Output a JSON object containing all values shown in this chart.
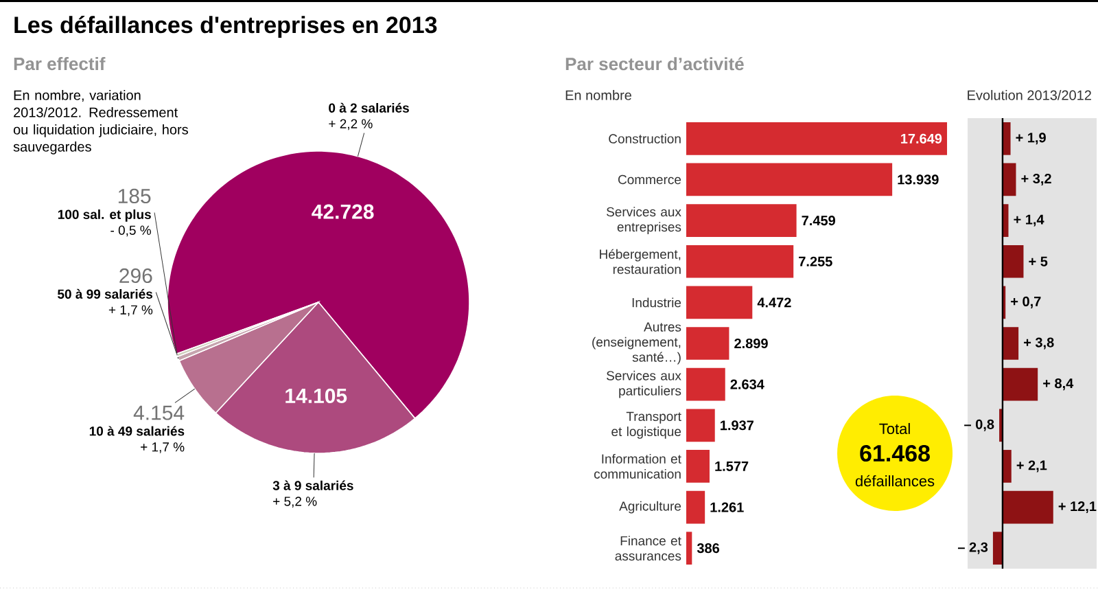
{
  "chart_data": [
    {
      "type": "pie",
      "title": "Les défaillances d'entreprises en 2013",
      "subtitle": "Par effectif",
      "categories": [
        "0 à 2 salariés",
        "3 à 9 salariés",
        "10 à 49 salariés",
        "50 à 99 salariés",
        "100 sal. et plus"
      ],
      "values": [
        42728,
        14105,
        4154,
        296,
        185
      ],
      "value_labels": [
        "42.728",
        "14.105",
        "4.154",
        "296",
        "185"
      ],
      "colors": [
        "#a0005f",
        "#ad4a7e",
        "#b8708f",
        "#c6a4ae",
        "#cfcfbd"
      ],
      "annotations": [
        "En nombre, variation 2013/2012. Redressement ou liquidation judiciaire, hors sauvegardes",
        "+ 2,2 %",
        "+ 5,2 %",
        "+ 1,7 %",
        "+ 1,7 %",
        "- 0,5 %"
      ]
    },
    {
      "type": "bar",
      "orientation": "horizontal",
      "title": "Par secteur d’activité",
      "subtitle": "En nombre",
      "categories": [
        "Construction",
        "Commerce",
        "Services aux entreprises",
        "Hébergement, restauration",
        "Industrie",
        "Autres (enseignement, santé…)",
        "Services aux particuliers",
        "Transport et logistique",
        "Information et communication",
        "Agriculture",
        "Finance et assurances"
      ],
      "values": [
        17649,
        13939,
        7459,
        7255,
        4472,
        2899,
        2634,
        1937,
        1577,
        1261,
        386
      ],
      "value_labels": [
        "17.649",
        "13.939",
        "7.459",
        "7.255",
        "4.472",
        "2.899",
        "2.634",
        "1.937",
        "1.577",
        "1.261",
        "386"
      ],
      "color": "#d52b30",
      "tick_labels": "y",
      "annotations": [
        "Total",
        "61.468",
        "défaillances"
      ]
    },
    {
      "type": "bar",
      "orientation": "horizontal",
      "title": "Evolution 2013/2012",
      "categories": [
        null,
        null,
        null,
        null,
        null,
        null,
        null,
        null,
        null,
        null,
        null
      ],
      "values": [
        1.9,
        3.2,
        1.4,
        5,
        0.7,
        3.8,
        8.4,
        -0.8,
        2.1,
        12.1,
        -2.3
      ],
      "value_labels": [
        "+ 1,9",
        "+ 3,2",
        "+ 1,4",
        "+ 5",
        "+ 0,7",
        "+ 3,8",
        "+ 8,4",
        "– 0,8",
        "+ 2,1",
        "+ 12,1",
        "– 2,3"
      ],
      "color": "#8e1214",
      "tick_labels": false
    }
  ]
}
